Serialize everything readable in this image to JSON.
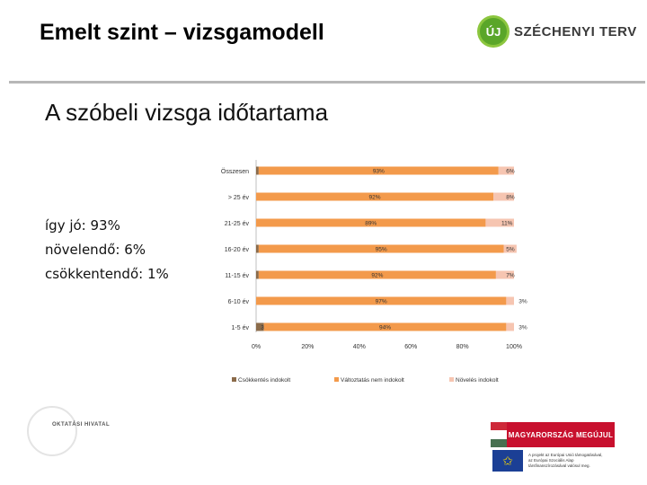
{
  "header": {
    "title": "Emelt szint – vizsgamodell",
    "logo_mark": "ÚJ",
    "logo_text": "SZÉCHENYI TERV"
  },
  "slide_title": "A szóbeli vizsga időtartama",
  "summary": {
    "line1": "így jó: 93%",
    "line2": "növelendő: 6%",
    "line3": "csökkentendő: 1%"
  },
  "colors": {
    "decrease": "#8b6b4a",
    "unchanged": "#f39a4b",
    "increase": "#f6c5b1"
  },
  "chart_data": {
    "type": "bar",
    "orientation": "horizontal",
    "stacked": true,
    "categories": [
      "Összesen",
      "> 25 év",
      "21-25 év",
      "16-20 év",
      "11-15 év",
      "6-10 év",
      "1-5 év"
    ],
    "series": [
      {
        "name": "Csökkentés indokolt",
        "values": [
          1,
          0,
          0,
          1,
          1,
          0,
          3
        ],
        "labels": [
          "1%",
          "0%",
          "0%",
          "1%",
          "1%",
          "0%",
          "3%"
        ]
      },
      {
        "name": "Változtatás nem indokolt",
        "values": [
          93,
          92,
          89,
          95,
          92,
          97,
          94
        ],
        "labels": [
          "93%",
          "92%",
          "89%",
          "95%",
          "92%",
          "97%",
          "94%"
        ]
      },
      {
        "name": "Növelés indokolt",
        "values": [
          6,
          8,
          11,
          5,
          7,
          3,
          3
        ],
        "labels": [
          "6%",
          "8%",
          "11%",
          "5%",
          "7%",
          "3%",
          "3%"
        ]
      }
    ],
    "xlim": [
      0,
      100
    ],
    "xticks": [
      "0%",
      "20%",
      "40%",
      "60%",
      "80%",
      "100%"
    ],
    "legend_position": "bottom"
  },
  "footer": {
    "left_logo_text": "OKTATÁSI HIVATAL",
    "badge_text": "MAGYARORSZÁG MEGÚJUL",
    "eu_text_1": "A projekt az Európai Unió támogatásával,",
    "eu_text_2": "az Európai Szociális Alap",
    "eu_text_3": "társfinanszírozásával valósul meg."
  }
}
